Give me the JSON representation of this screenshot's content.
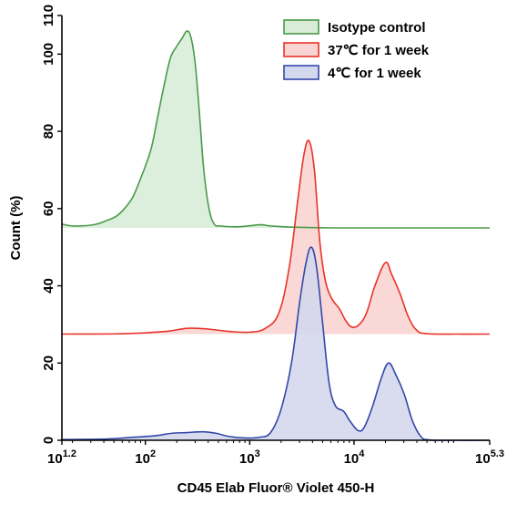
{
  "chart_data": {
    "type": "area",
    "xlabel": "CD45 Elab Fluor® Violet 450-H",
    "ylabel": "Count  (%)",
    "x_scale": "log",
    "xlim": [
      1.2,
      5.3
    ],
    "ylim": [
      0,
      110
    ],
    "x_ticks": [
      {
        "exp": 1.2,
        "base": "10",
        "sup": "1.2"
      },
      {
        "exp": 2,
        "base": "10",
        "sup": "2"
      },
      {
        "exp": 3,
        "base": "10",
        "sup": "3"
      },
      {
        "exp": 4,
        "base": "10",
        "sup": "4"
      },
      {
        "exp": 5.3,
        "base": "10",
        "sup": "5.3"
      }
    ],
    "y_ticks": [
      "0",
      "20",
      "40",
      "60",
      "80",
      "100",
      "110"
    ],
    "legend_position": "top-right",
    "series": [
      {
        "name": "Isotype control",
        "color": "#4a9a4a",
        "fill": "#d8ecd8",
        "baseline": 55,
        "points": [
          [
            1.2,
            56.0
          ],
          [
            1.3,
            55.5
          ],
          [
            1.5,
            55.8
          ],
          [
            1.62,
            56.8
          ],
          [
            1.72,
            58.0
          ],
          [
            1.8,
            60.0
          ],
          [
            1.88,
            63.0
          ],
          [
            1.95,
            67.5
          ],
          [
            2.0,
            71.0
          ],
          [
            2.06,
            76.0
          ],
          [
            2.12,
            84.0
          ],
          [
            2.18,
            92.0
          ],
          [
            2.24,
            99.0
          ],
          [
            2.3,
            102.0
          ],
          [
            2.35,
            104.0
          ],
          [
            2.4,
            106.0
          ],
          [
            2.44,
            104.0
          ],
          [
            2.48,
            97.0
          ],
          [
            2.52,
            84.0
          ],
          [
            2.56,
            70.0
          ],
          [
            2.61,
            60.0
          ],
          [
            2.66,
            56.0
          ],
          [
            2.72,
            55.5
          ],
          [
            2.9,
            55.3
          ],
          [
            3.1,
            55.8
          ],
          [
            3.2,
            55.5
          ],
          [
            3.4,
            55.2
          ],
          [
            3.8,
            55.0
          ],
          [
            4.5,
            55.0
          ],
          [
            5.3,
            55.0
          ]
        ]
      },
      {
        "name": "37℃  for 1 week",
        "color": "#e8332a",
        "fill": "#f8d4d2",
        "baseline": 27.5,
        "points": [
          [
            1.2,
            27.5
          ],
          [
            1.8,
            27.6
          ],
          [
            2.2,
            28.2
          ],
          [
            2.4,
            29.0
          ],
          [
            2.6,
            28.8
          ],
          [
            2.8,
            28.2
          ],
          [
            3.0,
            28.0
          ],
          [
            3.15,
            29.0
          ],
          [
            3.28,
            33.0
          ],
          [
            3.38,
            45.0
          ],
          [
            3.46,
            62.0
          ],
          [
            3.52,
            74.0
          ],
          [
            3.57,
            77.5
          ],
          [
            3.62,
            70.0
          ],
          [
            3.67,
            52.0
          ],
          [
            3.72,
            42.0
          ],
          [
            3.78,
            37.0
          ],
          [
            3.86,
            34.0
          ],
          [
            3.92,
            31.0
          ],
          [
            3.98,
            29.3
          ],
          [
            4.05,
            30.0
          ],
          [
            4.12,
            33.0
          ],
          [
            4.2,
            40.0
          ],
          [
            4.3,
            46.0
          ],
          [
            4.36,
            43.0
          ],
          [
            4.44,
            38.0
          ],
          [
            4.52,
            32.0
          ],
          [
            4.6,
            28.5
          ],
          [
            4.7,
            27.6
          ],
          [
            5.0,
            27.5
          ],
          [
            5.3,
            27.5
          ]
        ]
      },
      {
        "name": "4℃ for 1 week",
        "color": "#3348a8",
        "fill": "#d4d8ec",
        "baseline": 0,
        "points": [
          [
            1.2,
            0.2
          ],
          [
            1.6,
            0.3
          ],
          [
            1.9,
            0.8
          ],
          [
            2.1,
            1.2
          ],
          [
            2.25,
            1.8
          ],
          [
            2.4,
            2.0
          ],
          [
            2.55,
            2.2
          ],
          [
            2.68,
            1.8
          ],
          [
            2.8,
            1.0
          ],
          [
            2.95,
            0.6
          ],
          [
            3.1,
            0.8
          ],
          [
            3.2,
            2.0
          ],
          [
            3.3,
            8.0
          ],
          [
            3.4,
            20.0
          ],
          [
            3.48,
            36.0
          ],
          [
            3.54,
            46.0
          ],
          [
            3.59,
            50.0
          ],
          [
            3.64,
            45.0
          ],
          [
            3.7,
            30.0
          ],
          [
            3.76,
            15.0
          ],
          [
            3.82,
            9.0
          ],
          [
            3.9,
            7.5
          ],
          [
            3.96,
            5.0
          ],
          [
            4.04,
            2.5
          ],
          [
            4.1,
            3.5
          ],
          [
            4.18,
            9.0
          ],
          [
            4.26,
            16.0
          ],
          [
            4.33,
            20.0
          ],
          [
            4.4,
            17.0
          ],
          [
            4.48,
            12.0
          ],
          [
            4.56,
            5.0
          ],
          [
            4.64,
            1.0
          ],
          [
            4.72,
            0.1
          ],
          [
            5.0,
            0.0
          ],
          [
            5.3,
            0.0
          ]
        ]
      }
    ]
  }
}
